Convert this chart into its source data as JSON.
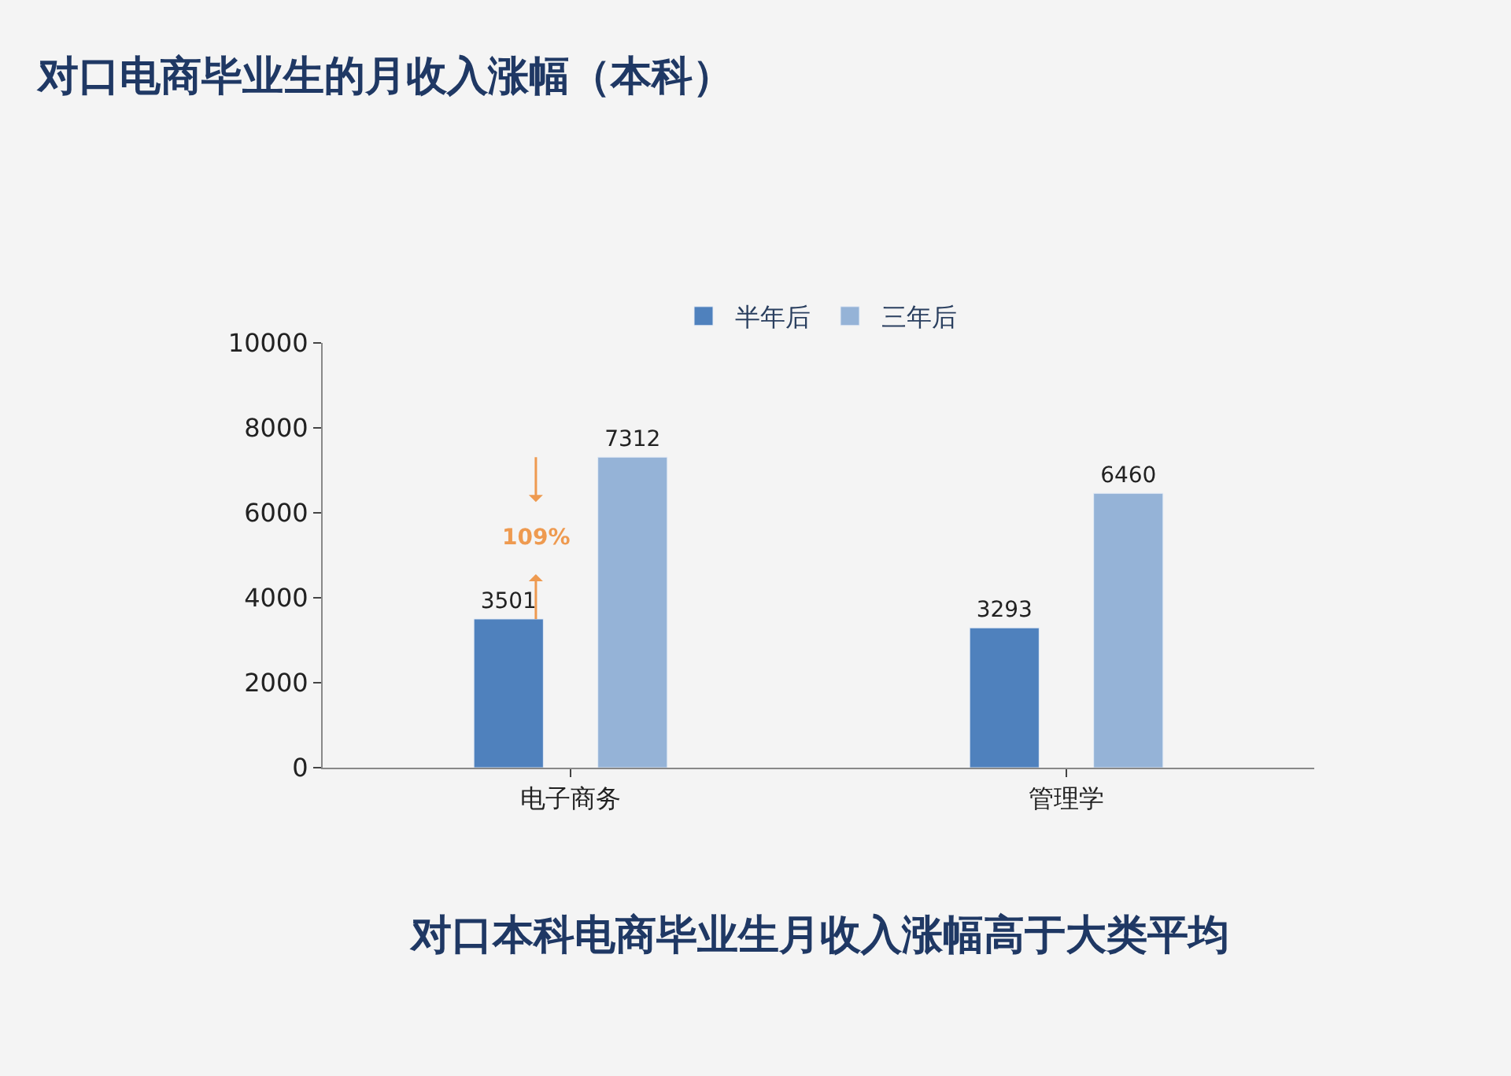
{
  "chart_data": {
    "type": "bar",
    "title": "对口电商毕业生的月收入涨幅（本科）",
    "categories": [
      "电子商务",
      "管理学"
    ],
    "series": [
      {
        "name": "半年后",
        "color": "#4f81bd",
        "values": [
          3501,
          3293
        ]
      },
      {
        "name": "三年后",
        "color": "#95b3d7",
        "values": [
          7312,
          6460
        ]
      }
    ],
    "ylim": [
      0,
      10000
    ],
    "yticks": [
      0,
      2000,
      4000,
      6000,
      8000,
      10000
    ],
    "grid": false,
    "legend": "top",
    "data_labels": true,
    "annotations": [
      "109%",
      "对口本科电商毕业生月收入涨幅高于大类平均"
    ]
  }
}
